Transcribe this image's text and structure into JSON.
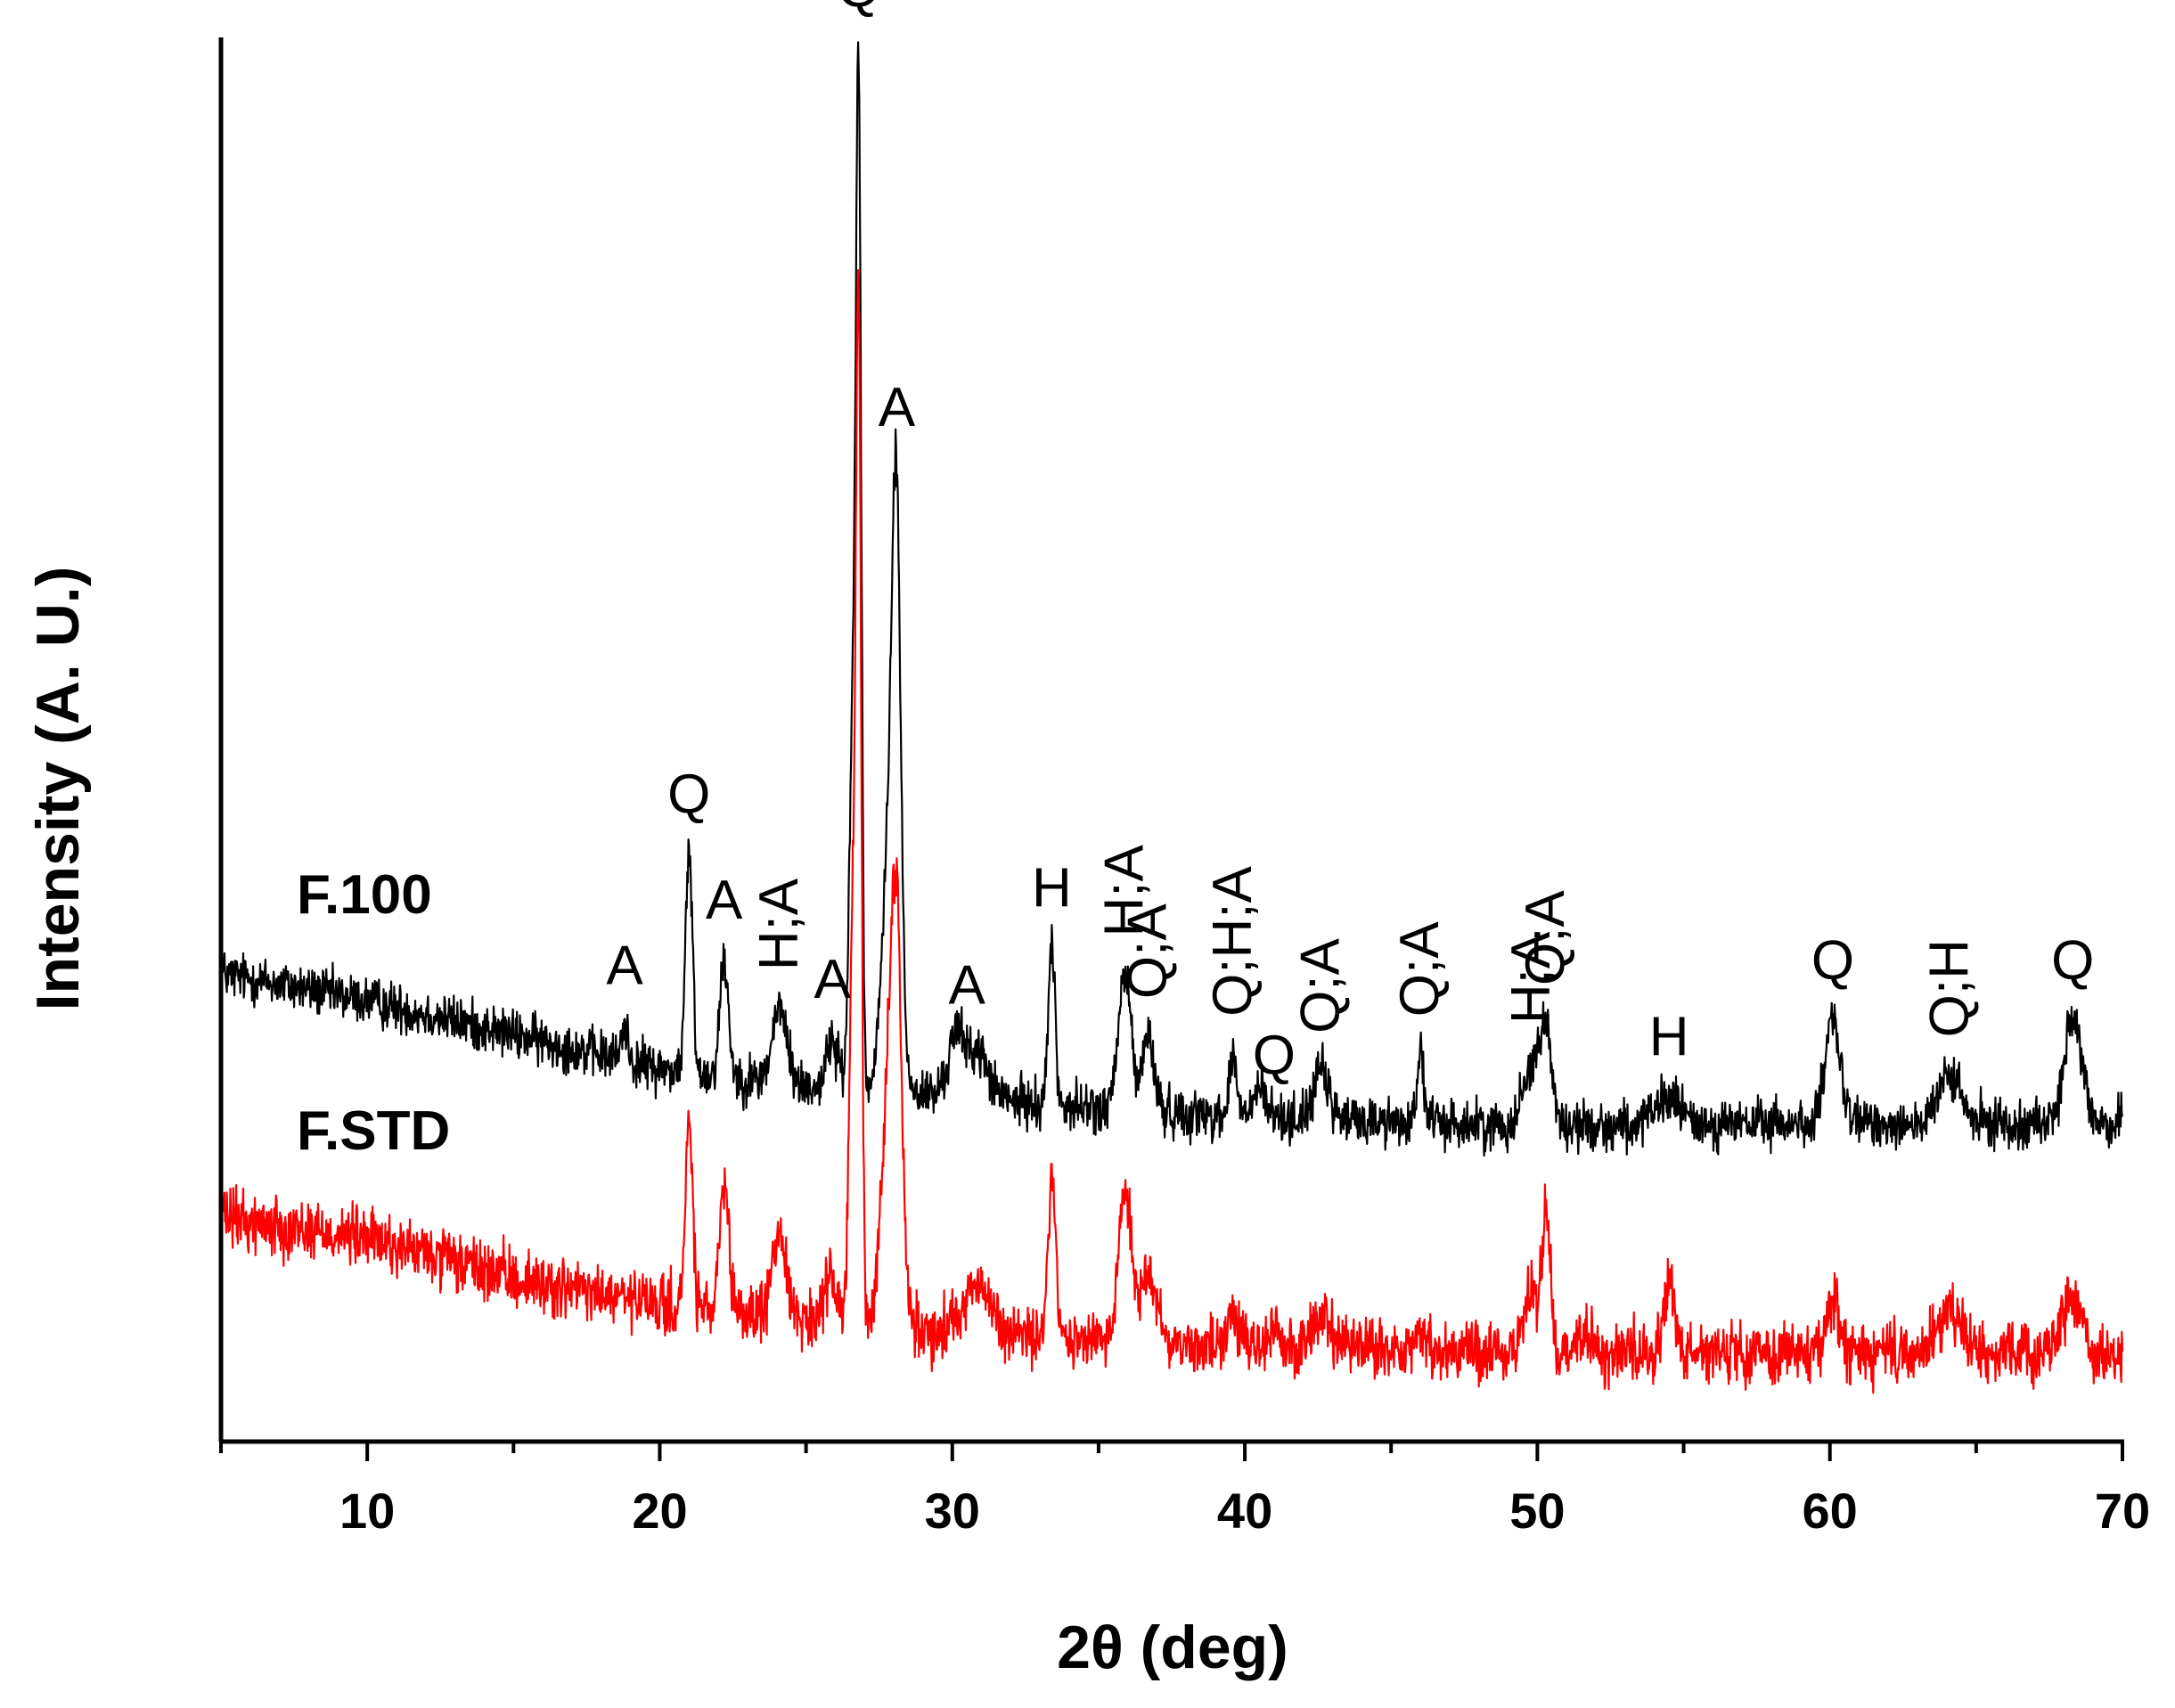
{
  "chart_data": {
    "type": "line",
    "title": "",
    "xlabel": "2θ (deg)",
    "ylabel": "Intensity (A. U.)",
    "xlim": [
      5,
      70
    ],
    "ylim": [
      0,
      1000
    ],
    "xticks": [
      10,
      20,
      30,
      40,
      50,
      60,
      70
    ],
    "series": [
      {
        "name": "F.100",
        "color": "#000000",
        "baseline": [
          [
            5,
            345
          ],
          [
            10,
            325
          ],
          [
            15,
            300
          ],
          [
            20,
            275
          ],
          [
            25,
            262
          ],
          [
            30,
            255
          ],
          [
            35,
            245
          ],
          [
            40,
            240
          ],
          [
            50,
            232
          ],
          [
            60,
            235
          ],
          [
            70,
            235
          ]
        ],
        "noise": 18,
        "peaks": [
          [
            18.8,
            25,
            0.12
          ],
          [
            21.0,
            160,
            0.12
          ],
          [
            22.2,
            85,
            0.15
          ],
          [
            24.1,
            55,
            0.25
          ],
          [
            25.9,
            35,
            0.2
          ],
          [
            26.6,
            270,
            0.12
          ],
          [
            26.8,
            700,
            0.09
          ],
          [
            27.9,
            220,
            0.25
          ],
          [
            28.1,
            300,
            0.14
          ],
          [
            30.1,
            40,
            0.25
          ],
          [
            30.8,
            35,
            0.4
          ],
          [
            33.4,
            115,
            0.12
          ],
          [
            35.9,
            100,
            0.22
          ],
          [
            36.7,
            55,
            0.2
          ],
          [
            39.6,
            45,
            0.12
          ],
          [
            40.5,
            20,
            0.2
          ],
          [
            42.6,
            35,
            0.25
          ],
          [
            46.0,
            50,
            0.12
          ],
          [
            49.8,
            45,
            0.3
          ],
          [
            50.3,
            65,
            0.2
          ],
          [
            54.5,
            20,
            0.4
          ],
          [
            60.1,
            75,
            0.25
          ],
          [
            64.1,
            35,
            0.35
          ],
          [
            68.3,
            75,
            0.3
          ]
        ],
        "peak_labels": [
          {
            "text": "A",
            "x": 18.8,
            "angle": 0
          },
          {
            "text": "Q",
            "x": 21.0,
            "angle": 0
          },
          {
            "text": "A",
            "x": 22.2,
            "angle": 0
          },
          {
            "text": "H;A",
            "x": 24.1,
            "angle": -90
          },
          {
            "text": "A",
            "x": 25.9,
            "angle": 0
          },
          {
            "text": "Q",
            "x": 26.8,
            "angle": 0
          },
          {
            "text": "A",
            "x": 28.1,
            "angle": 0
          },
          {
            "text": "A",
            "x": 30.5,
            "angle": 0
          },
          {
            "text": "H",
            "x": 33.4,
            "angle": 0
          },
          {
            "text": "H;A",
            "x": 35.9,
            "angle": -90
          },
          {
            "text": "Q;A",
            "x": 36.7,
            "angle": -90
          },
          {
            "text": "Q;H;A",
            "x": 39.6,
            "angle": -90
          },
          {
            "text": "Q",
            "x": 41.0,
            "angle": 0
          },
          {
            "text": "Q;A",
            "x": 42.6,
            "angle": -90
          },
          {
            "text": "Q;A",
            "x": 46.0,
            "angle": -90
          },
          {
            "text": "H;A",
            "x": 49.8,
            "angle": -90
          },
          {
            "text": "Q;A",
            "x": 50.3,
            "angle": -90
          },
          {
            "text": "H",
            "x": 54.5,
            "angle": 0
          },
          {
            "text": "Q",
            "x": 60.1,
            "angle": 0
          },
          {
            "text": "Q;H",
            "x": 64.1,
            "angle": -90
          },
          {
            "text": "Q",
            "x": 68.3,
            "angle": 0
          }
        ]
      },
      {
        "name": "F.STD",
        "color": "#ff0000",
        "baseline": [
          [
            5,
            165
          ],
          [
            10,
            150
          ],
          [
            15,
            120
          ],
          [
            20,
            100
          ],
          [
            25,
            90
          ],
          [
            30,
            80
          ],
          [
            35,
            75
          ],
          [
            40,
            70
          ],
          [
            50,
            65
          ],
          [
            60,
            65
          ],
          [
            70,
            65
          ]
        ],
        "noise": 22,
        "peaks": [
          [
            21.0,
            140,
            0.12
          ],
          [
            22.2,
            90,
            0.15
          ],
          [
            24.1,
            60,
            0.25
          ],
          [
            25.9,
            35,
            0.2
          ],
          [
            26.6,
            280,
            0.12
          ],
          [
            26.8,
            690,
            0.09
          ],
          [
            27.9,
            200,
            0.28
          ],
          [
            28.1,
            180,
            0.16
          ],
          [
            30.8,
            35,
            0.5
          ],
          [
            33.4,
            125,
            0.12
          ],
          [
            35.9,
            110,
            0.22
          ],
          [
            36.7,
            50,
            0.3
          ],
          [
            39.6,
            25,
            0.15
          ],
          [
            41.0,
            15,
            0.2
          ],
          [
            42.6,
            25,
            0.3
          ],
          [
            46.0,
            15,
            0.15
          ],
          [
            49.8,
            40,
            0.3
          ],
          [
            50.3,
            95,
            0.15
          ],
          [
            51.5,
            15,
            0.3
          ],
          [
            54.5,
            55,
            0.2
          ],
          [
            60.1,
            35,
            0.25
          ],
          [
            64.1,
            30,
            0.4
          ],
          [
            68.3,
            40,
            0.35
          ]
        ]
      }
    ]
  }
}
